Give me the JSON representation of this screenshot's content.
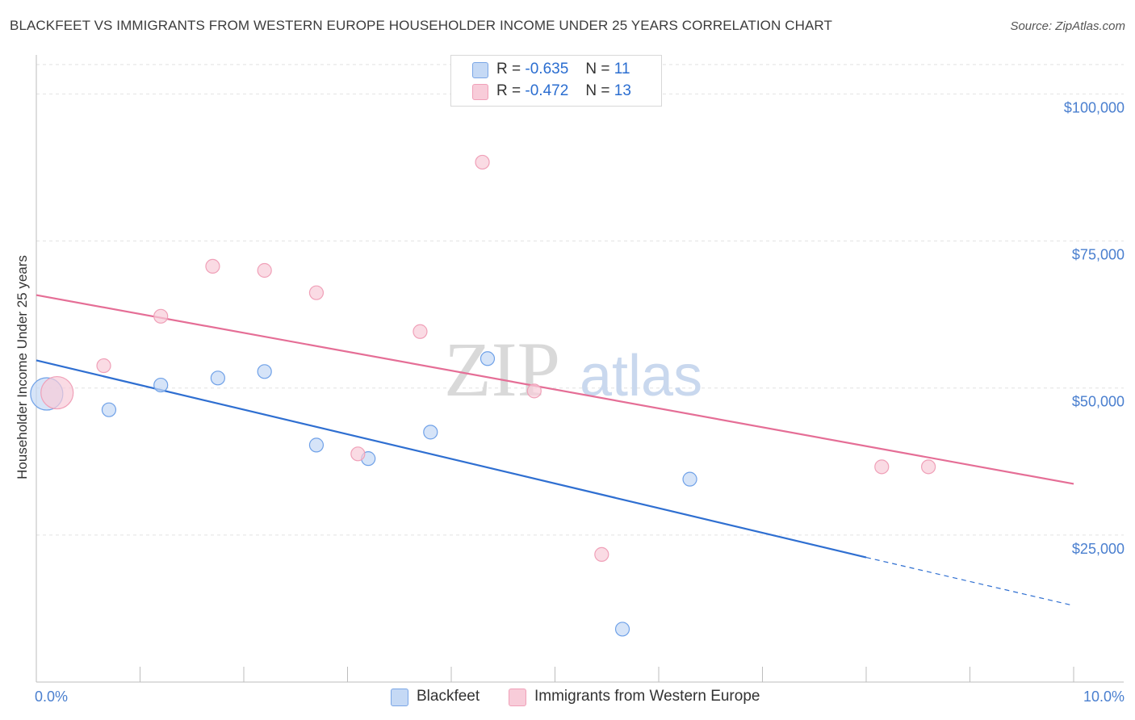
{
  "title": "BLACKFEET VS IMMIGRANTS FROM WESTERN EUROPE HOUSEHOLDER INCOME UNDER 25 YEARS CORRELATION CHART",
  "source": "Source: ZipAtlas.com",
  "watermark": {
    "zip": "ZIP",
    "atlas": "atlas"
  },
  "legend": {
    "r_label": "R =",
    "n_label": "N =",
    "series": [
      {
        "r": "-0.635",
        "n": "11"
      },
      {
        "r": "-0.472",
        "n": "13"
      }
    ]
  },
  "chart_data": {
    "type": "scatter",
    "title": "BLACKFEET VS IMMIGRANTS FROM WESTERN EUROPE HOUSEHOLDER INCOME UNDER 25 YEARS CORRELATION CHART",
    "xlabel": "",
    "ylabel": "Householder Income Under 25 years",
    "xlim": [
      0,
      10
    ],
    "ylim": [
      0,
      105000
    ],
    "x_tick_labels": [
      "0.0%",
      "10.0%"
    ],
    "y_ticks": [
      25000,
      50000,
      75000,
      100000
    ],
    "y_tick_labels": [
      "$25,000",
      "$50,000",
      "$75,000",
      "$100,000"
    ],
    "grid": true,
    "series": [
      {
        "name": "Blackfeet",
        "color": "#6fa1e8",
        "fill": "#c5d9f5",
        "line_color": "#2f6fd1",
        "points": [
          {
            "x": 0.1,
            "y": 49000,
            "size": "large"
          },
          {
            "x": 0.7,
            "y": 46300
          },
          {
            "x": 1.2,
            "y": 50500
          },
          {
            "x": 1.75,
            "y": 51700
          },
          {
            "x": 2.2,
            "y": 52800
          },
          {
            "x": 2.7,
            "y": 40300
          },
          {
            "x": 3.2,
            "y": 38000
          },
          {
            "x": 3.8,
            "y": 42500
          },
          {
            "x": 4.35,
            "y": 55000
          },
          {
            "x": 5.65,
            "y": 9000
          },
          {
            "x": 6.3,
            "y": 34500
          }
        ],
        "trend": {
          "x0": 0,
          "y0": 54700,
          "x1": 8.0,
          "y1": 21200,
          "dash_to_x": 10.0,
          "dash_to_y": 13000
        }
      },
      {
        "name": "Immigrants from Western Europe",
        "color": "#f0a0b8",
        "fill": "#f8ccd9",
        "line_color": "#e56e96",
        "points": [
          {
            "x": 0.2,
            "y": 49200,
            "size": "large"
          },
          {
            "x": 0.65,
            "y": 53800
          },
          {
            "x": 1.2,
            "y": 62200
          },
          {
            "x": 1.7,
            "y": 70700
          },
          {
            "x": 2.2,
            "y": 70000
          },
          {
            "x": 2.7,
            "y": 66200
          },
          {
            "x": 3.1,
            "y": 38800
          },
          {
            "x": 3.7,
            "y": 59600
          },
          {
            "x": 4.3,
            "y": 88400
          },
          {
            "x": 4.8,
            "y": 49500
          },
          {
            "x": 5.45,
            "y": 21700
          },
          {
            "x": 8.15,
            "y": 36600
          },
          {
            "x": 8.6,
            "y": 36600
          }
        ],
        "trend": {
          "x0": 0,
          "y0": 65800,
          "x1": 10.0,
          "y1": 33700
        }
      }
    ]
  }
}
